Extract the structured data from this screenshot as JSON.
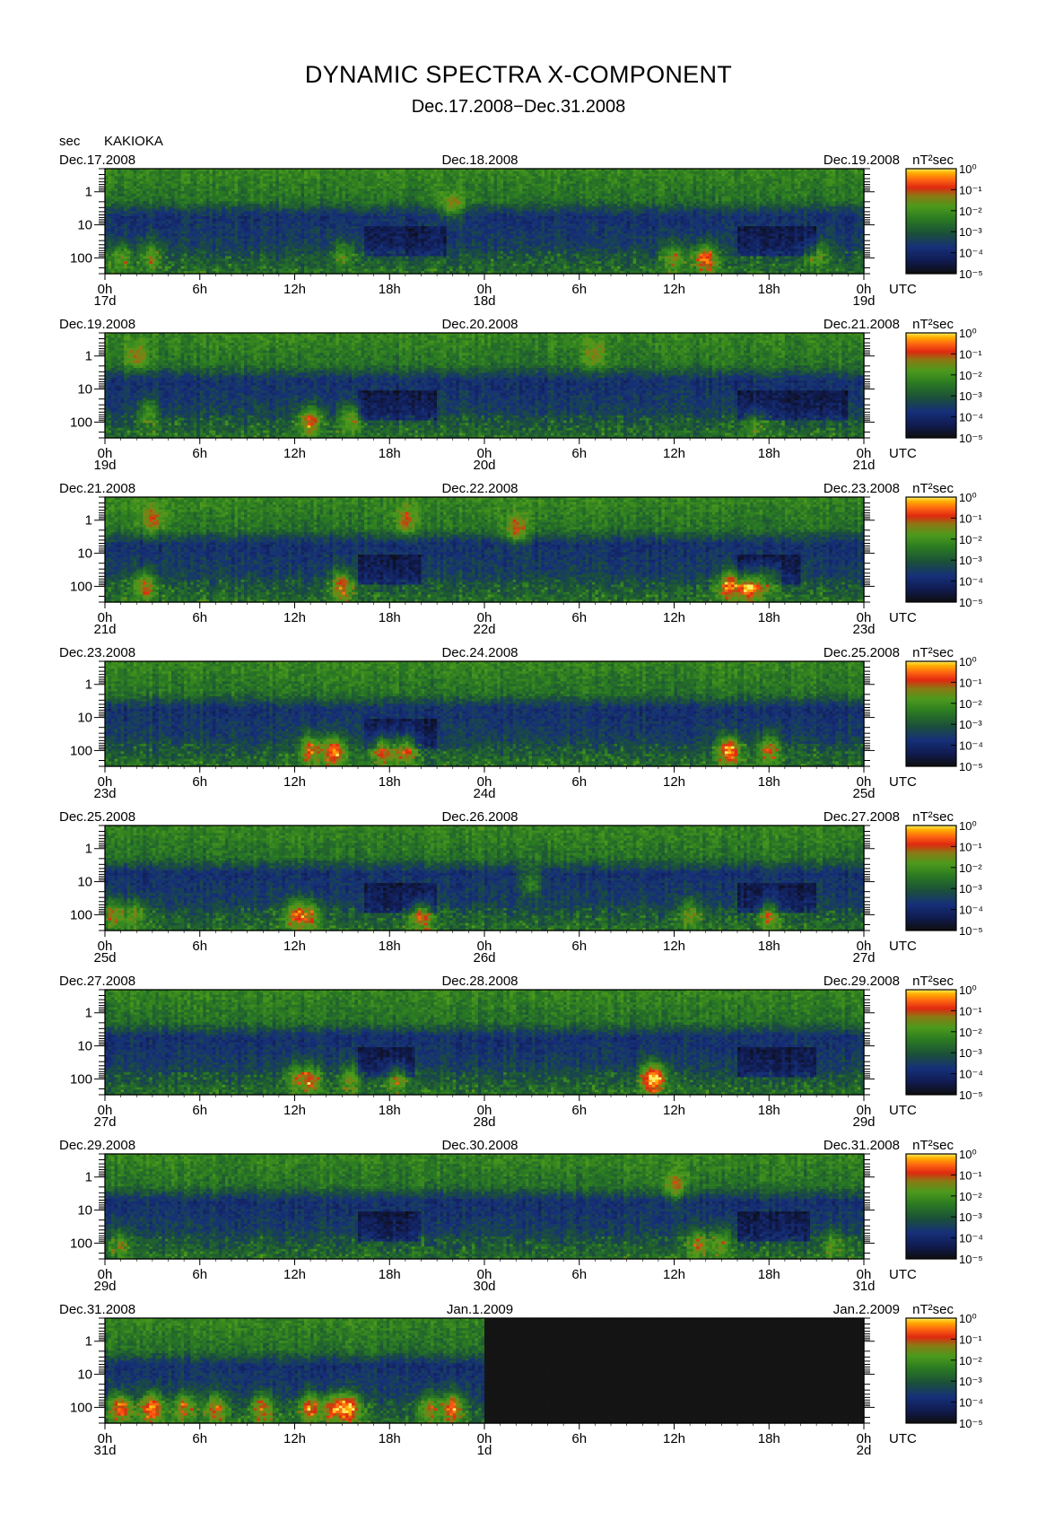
{
  "title": "DYNAMIC SPECTRA X-COMPONENT",
  "subtitle": "Dec.17.2008−Dec.31.2008",
  "header": {
    "unit": "sec",
    "station": "KAKIOKA"
  },
  "colors": {
    "scale": [
      "#101010",
      "#101a55",
      "#1a2f8a",
      "#1a5a2a",
      "#2e8c1e",
      "#5fa018",
      "#e02010",
      "#ff5a10",
      "#ff9a00",
      "#ffd200",
      "#ffff60"
    ],
    "no_data": "#151515"
  },
  "chart_data": {
    "type": "heatmap",
    "x_tick_labels": [
      "0h",
      "6h",
      "12h",
      "18h",
      "0h",
      "6h",
      "12h",
      "18h",
      "0h"
    ],
    "x_unit_label": "UTC",
    "y_label": "sec",
    "y_scale": "log",
    "y_ticks": [
      1,
      10,
      100
    ],
    "y_range": [
      0.2,
      300
    ],
    "colorbar": {
      "label": "nT²sec",
      "scale": "log",
      "range": [
        1e-05,
        1
      ],
      "ticks": [
        "10⁰",
        "10⁻¹",
        "10⁻²",
        "10⁻³",
        "10⁻⁴",
        "10⁻⁵"
      ]
    },
    "panels": [
      {
        "left_date": "Dec.17.2008",
        "mid_date": "Dec.18.2008",
        "right_date": "Dec.19.2008",
        "day_labels": [
          "17d",
          "18d",
          "19d"
        ],
        "events": [
          [
            1.0,
            90,
            0.5
          ],
          [
            3.0,
            80,
            0.5
          ],
          [
            15.0,
            70,
            0.4
          ],
          [
            22.0,
            3,
            0.6
          ],
          [
            36.0,
            90,
            0.6
          ],
          [
            38.0,
            100,
            0.9
          ],
          [
            45.0,
            80,
            0.5
          ]
        ],
        "quiet": [
          [
            16.5,
            21.5
          ],
          [
            40.0,
            45.0
          ]
        ],
        "no_data_from": null
      },
      {
        "left_date": "Dec.19.2008",
        "mid_date": "Dec.20.2008",
        "right_date": "Dec.21.2008",
        "day_labels": [
          "19d",
          "20d",
          "21d"
        ],
        "events": [
          [
            2.0,
            1,
            0.5
          ],
          [
            2.7,
            50,
            0.5
          ],
          [
            13.0,
            90,
            0.8
          ],
          [
            15.5,
            80,
            0.6
          ],
          [
            31.0,
            1,
            0.4
          ],
          [
            41.0,
            90,
            0.4
          ]
        ],
        "quiet": [
          [
            16.0,
            21.0
          ],
          [
            40.0,
            47.0
          ]
        ],
        "no_data_from": null
      },
      {
        "left_date": "Dec.21.2008",
        "mid_date": "Dec.22.2008",
        "right_date": "Dec.23.2008",
        "day_labels": [
          "21d",
          "22d",
          "23d"
        ],
        "events": [
          [
            2.5,
            90,
            0.7
          ],
          [
            3.0,
            1,
            0.5
          ],
          [
            15.0,
            90,
            0.8
          ],
          [
            19.0,
            1,
            0.5
          ],
          [
            26.0,
            2,
            0.6
          ],
          [
            39.5,
            90,
            0.9
          ],
          [
            40.8,
            100,
            1.0
          ],
          [
            42.0,
            60,
            0.6
          ]
        ],
        "quiet": [
          [
            16.0,
            20.0
          ],
          [
            40.0,
            44.0
          ]
        ],
        "no_data_from": null
      },
      {
        "left_date": "Dec.23.2008",
        "mid_date": "Dec.24.2008",
        "right_date": "Dec.25.2008",
        "day_labels": [
          "23d",
          "24d",
          "25d"
        ],
        "events": [
          [
            13.0,
            90,
            0.8
          ],
          [
            14.5,
            100,
            0.9
          ],
          [
            17.5,
            90,
            0.8
          ],
          [
            19.0,
            80,
            0.8
          ],
          [
            39.5,
            100,
            1.0
          ],
          [
            42.0,
            90,
            0.7
          ]
        ],
        "quiet": [
          [
            16.5,
            21.0
          ]
        ],
        "no_data_from": null
      },
      {
        "left_date": "Dec.25.2008",
        "mid_date": "Dec.26.2008",
        "right_date": "Dec.27.2008",
        "day_labels": [
          "25d",
          "26d",
          "27d"
        ],
        "events": [
          [
            0.5,
            90,
            0.6
          ],
          [
            2.0,
            90,
            0.5
          ],
          [
            12.0,
            100,
            0.7
          ],
          [
            13.0,
            100,
            0.6
          ],
          [
            20.0,
            100,
            0.8
          ],
          [
            27.0,
            10,
            0.5
          ],
          [
            37.0,
            90,
            0.5
          ],
          [
            42.0,
            90,
            0.6
          ]
        ],
        "quiet": [
          [
            16.5,
            21.0
          ],
          [
            40.0,
            45.0
          ]
        ],
        "no_data_from": null
      },
      {
        "left_date": "Dec.27.2008",
        "mid_date": "Dec.28.2008",
        "right_date": "Dec.29.2008",
        "day_labels": [
          "27d",
          "28d",
          "29d"
        ],
        "events": [
          [
            12.0,
            90,
            0.4
          ],
          [
            13.0,
            100,
            0.7
          ],
          [
            15.5,
            90,
            0.5
          ],
          [
            18.5,
            90,
            0.6
          ],
          [
            34.5,
            100,
            0.8
          ],
          [
            35.0,
            80,
            0.5
          ]
        ],
        "quiet": [
          [
            16.0,
            19.5
          ],
          [
            40.0,
            45.0
          ]
        ],
        "no_data_from": null
      },
      {
        "left_date": "Dec.29.2008",
        "mid_date": "Dec.30.2008",
        "right_date": "Dec.31.2008",
        "day_labels": [
          "29d",
          "30d",
          "31d"
        ],
        "events": [
          [
            1.0,
            100,
            0.4
          ],
          [
            36.0,
            2,
            0.5
          ],
          [
            37.5,
            100,
            0.6
          ],
          [
            39.0,
            100,
            0.5
          ],
          [
            46.0,
            100,
            0.4
          ]
        ],
        "quiet": [
          [
            16.0,
            20.0
          ],
          [
            40.0,
            44.5
          ]
        ],
        "no_data_from": null
      },
      {
        "left_date": "Dec.31.2008",
        "mid_date": "Jan.1.2009",
        "right_date": "Jan.2.2009",
        "day_labels": [
          "31d",
          "1d",
          "2d"
        ],
        "events": [
          [
            1.0,
            100,
            0.9
          ],
          [
            3.0,
            100,
            1.0
          ],
          [
            5.0,
            90,
            0.7
          ],
          [
            7.0,
            100,
            0.7
          ],
          [
            10.0,
            100,
            0.7
          ],
          [
            13.0,
            100,
            0.8
          ],
          [
            14.5,
            100,
            0.8
          ],
          [
            15.5,
            100,
            0.9
          ],
          [
            20.5,
            100,
            0.6
          ],
          [
            22.0,
            100,
            0.9
          ]
        ],
        "quiet": [],
        "no_data_from": 24.0
      }
    ]
  }
}
